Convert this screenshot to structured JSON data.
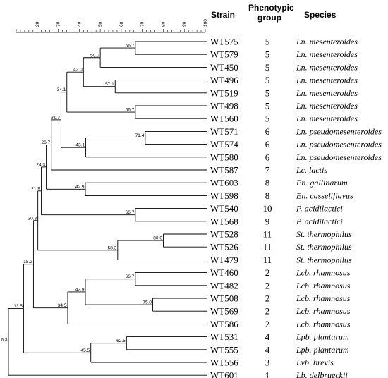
{
  "headers": {
    "strain": "Strain",
    "phenotypic_group_line1": "Phenotypic",
    "phenotypic_group_line2": "group",
    "species": "Species"
  },
  "scale": {
    "min": 10,
    "max": 100,
    "ticks": [
      20,
      30,
      40,
      50,
      60,
      70,
      80,
      90,
      100
    ]
  },
  "leaves": [
    {
      "strain": "WT575",
      "group": "5",
      "species": "Ln. mesenteroides"
    },
    {
      "strain": "WT579",
      "group": "5",
      "species": "Ln. mesenteroides"
    },
    {
      "strain": "WT450",
      "group": "5",
      "species": "Ln. mesenteroides"
    },
    {
      "strain": "WT496",
      "group": "5",
      "species": "Ln. mesenteroides"
    },
    {
      "strain": "WT519",
      "group": "5",
      "species": "Ln. mesenteroides"
    },
    {
      "strain": "WT498",
      "group": "5",
      "species": "Ln. mesenteroides"
    },
    {
      "strain": "WT560",
      "group": "5",
      "species": "Ln. mesenteroides"
    },
    {
      "strain": "WT571",
      "group": "6",
      "species": "Ln. pseudomesenteroides"
    },
    {
      "strain": "WT574",
      "group": "6",
      "species": "Ln. pseudomesenteroides"
    },
    {
      "strain": "WT580",
      "group": "6",
      "species": "Ln. pseudomesenteroides"
    },
    {
      "strain": "WT587",
      "group": "7",
      "species": "Lc. lactis"
    },
    {
      "strain": "WT603",
      "group": "8",
      "species": "En. gallinarum"
    },
    {
      "strain": "WT598",
      "group": "8",
      "species": "En. casseliflavus"
    },
    {
      "strain": "WT540",
      "group": "10",
      "species": "P. acidilactici"
    },
    {
      "strain": "WT568",
      "group": "9",
      "species": "P. acidilactici"
    },
    {
      "strain": "WT528",
      "group": "11",
      "species": "St. thermophilus"
    },
    {
      "strain": "WT526",
      "group": "11",
      "species": "St. thermophilus"
    },
    {
      "strain": "WT479",
      "group": "11",
      "species": "St. thermophilus"
    },
    {
      "strain": "WT460",
      "group": "2",
      "species": "Lcb. rhamnosus"
    },
    {
      "strain": "WT482",
      "group": "2",
      "species": "Lcb. rhamnosus"
    },
    {
      "strain": "WT508",
      "group": "2",
      "species": "Lcb. rhamnosus"
    },
    {
      "strain": "WT569",
      "group": "2",
      "species": "Lcb. rhamnosus"
    },
    {
      "strain": "WT586",
      "group": "2",
      "species": "Lcb. rhamnosus"
    },
    {
      "strain": "WT531",
      "group": "4",
      "species": "Lpb. plantarum"
    },
    {
      "strain": "WT555",
      "group": "4",
      "species": "Lpb. plantarum"
    },
    {
      "strain": "WT556",
      "group": "3",
      "species": "Lvb. brevis"
    },
    {
      "strain": "WT601",
      "group": "1",
      "species": "Lb. delbrueckii"
    }
  ],
  "tree": {
    "s": 6.3,
    "c": [
      {
        "s": 13.5,
        "c": [
          {
            "s": 18.2,
            "c": [
              {
                "s": 20.3,
                "c": [
                  {
                    "s": 21.9,
                    "c": [
                      {
                        "s": 24.3,
                        "c": [
                          {
                            "s": 26.7,
                            "c": [
                              {
                                "s": 31.3,
                                "c": [
                                  {
                                    "s": 34.1,
                                    "c": [
                                      {
                                        "s": 42.0,
                                        "c": [
                                          {
                                            "s": 50.0,
                                            "c": [
                                              {
                                                "s": 66.7,
                                                "c": [
                                                  {
                                                    "l": 0
                                                  },
                                                  {
                                                    "l": 1
                                                  }
                                                ]
                                              },
                                              {
                                                "l": 2
                                              }
                                            ]
                                          },
                                          {
                                            "s": 57.1,
                                            "c": [
                                              {
                                                "l": 3
                                              },
                                              {
                                                "l": 4
                                              }
                                            ]
                                          }
                                        ]
                                      },
                                      {
                                        "s": 66.7,
                                        "c": [
                                          {
                                            "l": 5
                                          },
                                          {
                                            "l": 6
                                          }
                                        ]
                                      }
                                    ]
                                  },
                                  {
                                    "s": 43.1,
                                    "c": [
                                      {
                                        "s": 71.4,
                                        "c": [
                                          {
                                            "l": 7
                                          },
                                          {
                                            "l": 8
                                          }
                                        ]
                                      },
                                      {
                                        "l": 9
                                      }
                                    ]
                                  }
                                ]
                              },
                              {
                                "l": 10
                              }
                            ]
                          },
                          {
                            "s": 42.9,
                            "c": [
                              {
                                "l": 11
                              },
                              {
                                "l": 12
                              }
                            ]
                          }
                        ]
                      },
                      {
                        "s": 66.7,
                        "c": [
                          {
                            "l": 13
                          },
                          {
                            "l": 14
                          }
                        ]
                      }
                    ]
                  },
                  {
                    "s": 58.3,
                    "c": [
                      {
                        "s": 80.0,
                        "c": [
                          {
                            "l": 15
                          },
                          {
                            "l": 16
                          }
                        ]
                      },
                      {
                        "l": 17
                      }
                    ]
                  }
                ]
              },
              {
                "s": 34.5,
                "c": [
                  {
                    "s": 42.9,
                    "c": [
                      {
                        "s": 66.7,
                        "c": [
                          {
                            "l": 18
                          },
                          {
                            "l": 19
                          }
                        ]
                      },
                      {
                        "s": 75.0,
                        "c": [
                          {
                            "l": 20
                          },
                          {
                            "l": 21
                          }
                        ]
                      }
                    ]
                  },
                  {
                    "l": 22
                  }
                ]
              }
            ]
          },
          {
            "s": 45.5,
            "c": [
              {
                "s": 62.5,
                "c": [
                  {
                    "l": 23
                  },
                  {
                    "l": 24
                  }
                ]
              },
              {
                "l": 25
              }
            ]
          }
        ]
      },
      {
        "l": 26
      }
    ]
  }
}
